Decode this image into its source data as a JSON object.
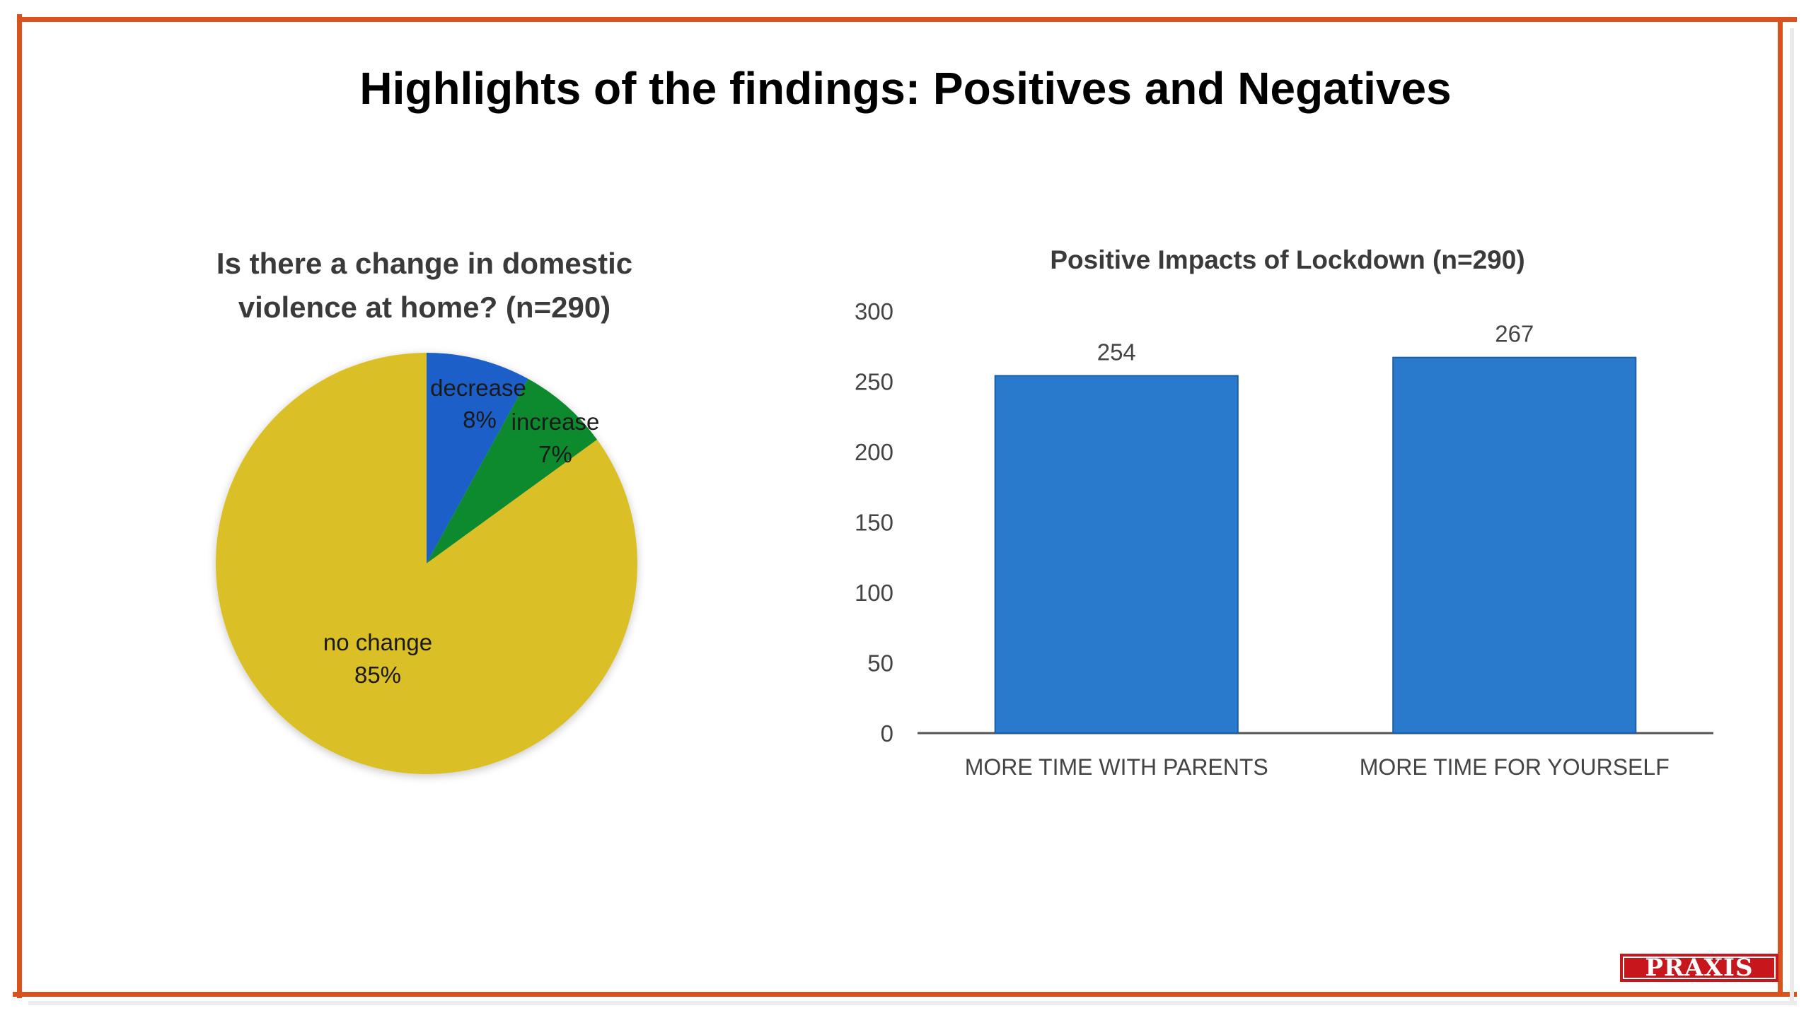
{
  "slide": {
    "title": "Highlights of the findings: Positives and Negatives",
    "logo_text": "PRAXIS",
    "frame_color": "#d9531e"
  },
  "chart_data": [
    {
      "type": "pie",
      "title": "Is there a change in domestic violence at home? (n=290)",
      "slices": [
        {
          "label": "decrease",
          "value": 8,
          "display": "8%",
          "color": "#1f5fc8"
        },
        {
          "label": "increase",
          "value": 7,
          "display": "7%",
          "color": "#0e8a2e"
        },
        {
          "label": "no change",
          "value": 85,
          "display": "85%",
          "color": "#dbbf25"
        }
      ]
    },
    {
      "type": "bar",
      "title": "Positive Impacts of Lockdown (n=290)",
      "categories": [
        "MORE TIME WITH PARENTS",
        "MORE TIME FOR YOURSELF"
      ],
      "values": [
        254,
        267
      ],
      "value_labels": [
        "254",
        "267"
      ],
      "ylim": [
        0,
        300
      ],
      "yticks": [
        "0",
        "50",
        "100",
        "150",
        "200",
        "250",
        "300"
      ],
      "bar_color": "#2979cc",
      "grid": false,
      "legend": "none"
    }
  ]
}
